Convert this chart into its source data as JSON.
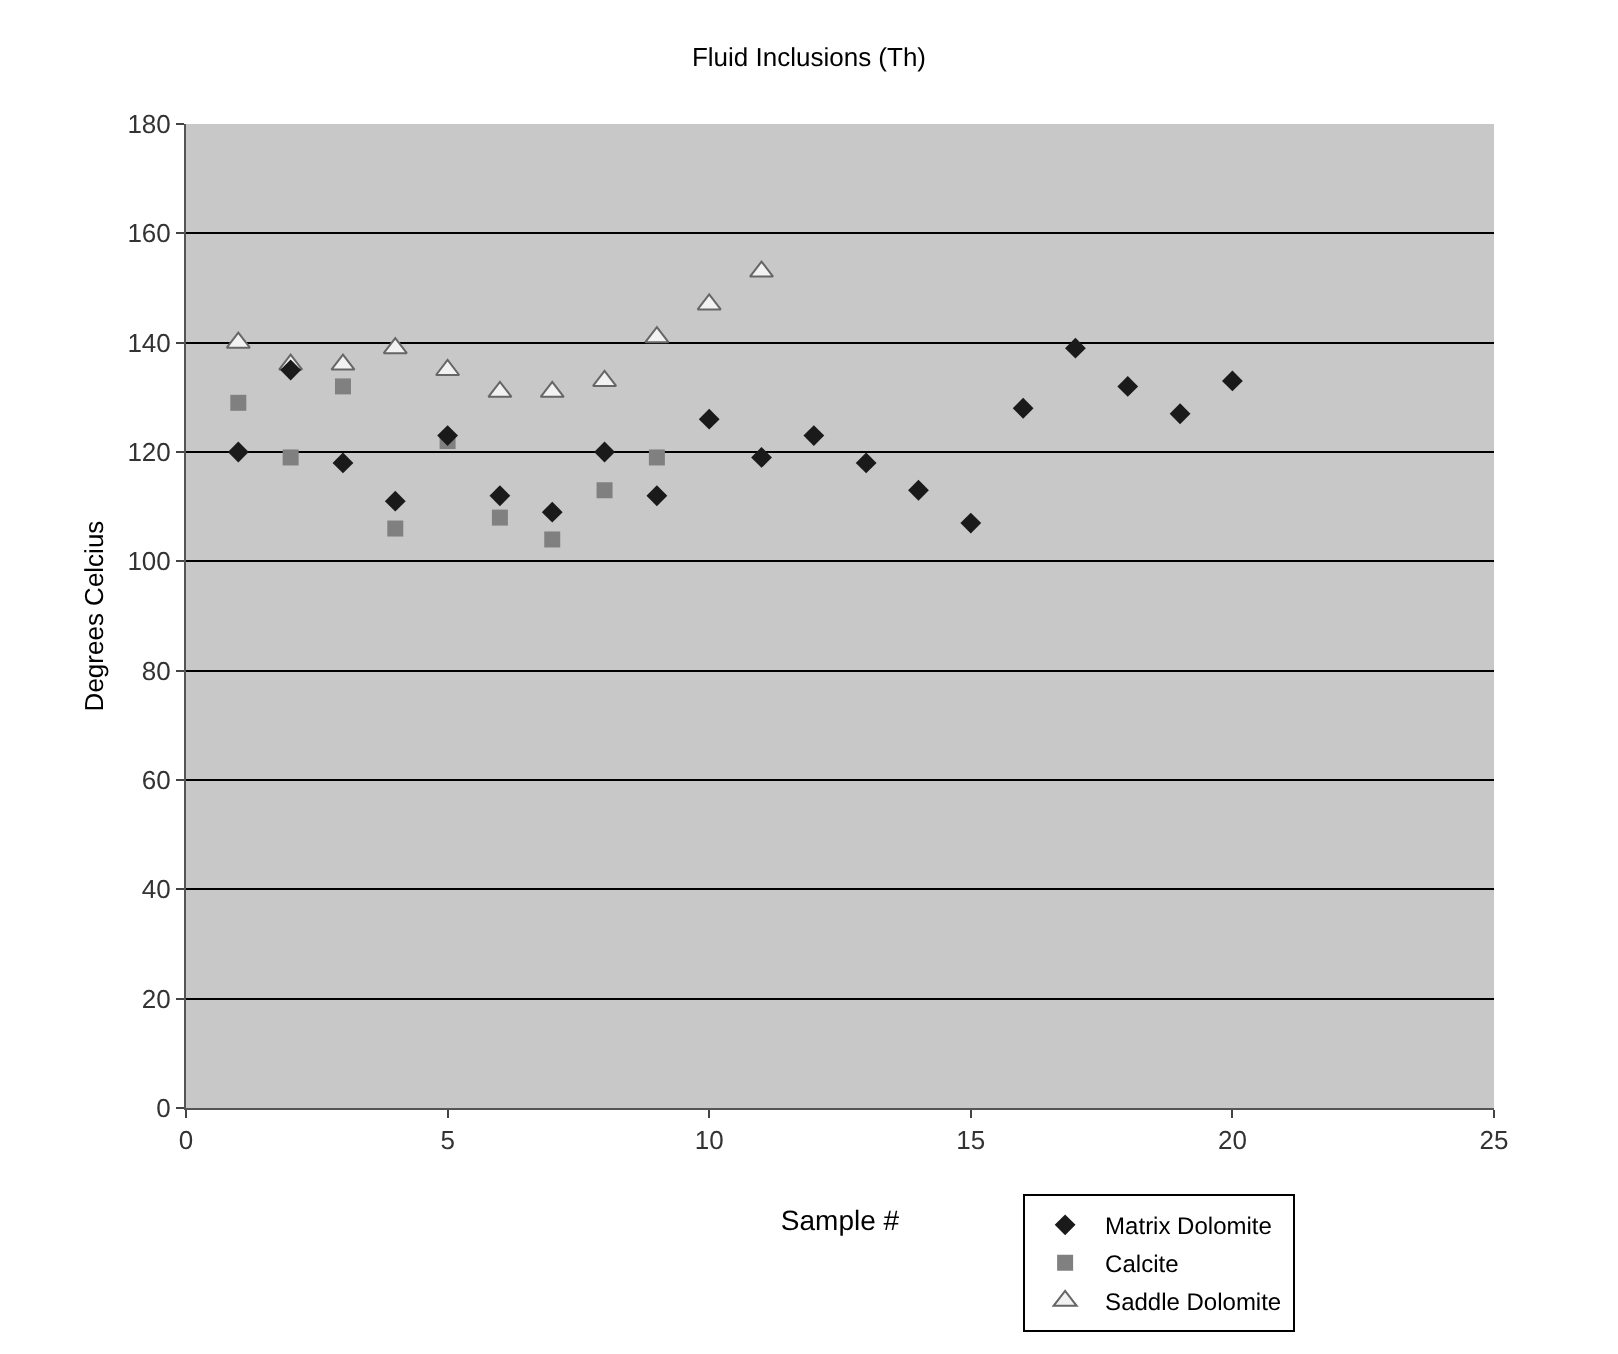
{
  "chart_data": {
    "type": "scatter",
    "title": "Fluid Inclusions (Th)",
    "xlabel": "Sample #",
    "ylabel": "Degrees Celcius",
    "xlim": [
      0,
      25
    ],
    "xticks": [
      0,
      5,
      10,
      15,
      20,
      25
    ],
    "ylim": [
      0,
      180
    ],
    "yticks": [
      0,
      20,
      40,
      60,
      80,
      100,
      120,
      140,
      160,
      180
    ],
    "grid": "y",
    "legend": "bottom right",
    "series": [
      {
        "name": "Matrix Dolomite",
        "color": "#1a1a1a",
        "marker": "diamond",
        "x": [
          1,
          2,
          3,
          4,
          5,
          6,
          7,
          8,
          9,
          10,
          11,
          12,
          13,
          14,
          15,
          16,
          17,
          18,
          19,
          20
        ],
        "values": [
          120,
          135,
          118,
          111,
          123,
          112,
          109,
          120,
          112,
          126,
          119,
          123,
          118,
          113,
          107,
          128,
          139,
          132,
          127,
          133
        ]
      },
      {
        "name": "Calcite",
        "color": "#808080",
        "marker": "square",
        "x": [
          1,
          2,
          3,
          4,
          5,
          6,
          7,
          8,
          9
        ],
        "values": [
          129,
          119,
          132,
          106,
          122,
          108,
          104,
          113,
          119
        ]
      },
      {
        "name": "Saddle Dolomite",
        "color": "#f2f2f2",
        "marker": "triangle",
        "x": [
          1,
          2,
          3,
          4,
          5,
          6,
          7,
          8,
          9,
          10,
          11
        ],
        "values": [
          140,
          136,
          136,
          139,
          135,
          131,
          131,
          133,
          141,
          147,
          153
        ]
      }
    ]
  }
}
